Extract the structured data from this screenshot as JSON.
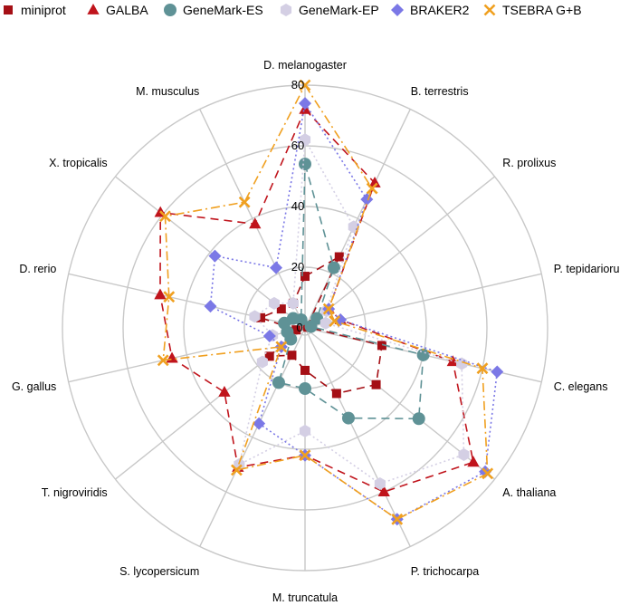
{
  "chart_data": {
    "type": "radar",
    "title": "",
    "legend_position": "top",
    "radial_ticks": [
      "20",
      "40",
      "60",
      "80"
    ],
    "radial_tick_values": [
      20,
      40,
      60,
      80
    ],
    "radial_max": 80,
    "grid": true,
    "categories": [
      "D. melanogaster",
      "B. terrestris",
      "R. prolixus",
      "P. tepidariorum",
      "C. elegans",
      "A. thaliana",
      "P. trichocarpa",
      "M. truncatula",
      "S. lycopersicum",
      "T. nigroviridis",
      "G. gallus",
      "D. rerio",
      "X. tropicalis",
      "M. musculus"
    ],
    "series": [
      {
        "name": "miniprot",
        "color": "#a50f15",
        "marker": "square",
        "dash": "dashed",
        "values": [
          17,
          26,
          1,
          1,
          26,
          30,
          24,
          14,
          10,
          15,
          3,
          15,
          10,
          9
        ]
      },
      {
        "name": "GALBA",
        "color": "#c0141c",
        "marker": "triangle",
        "dash": "dashed",
        "values": [
          72,
          53,
          10,
          12,
          50,
          71,
          60,
          42,
          51,
          34,
          45,
          49,
          61,
          38
        ]
      },
      {
        "name": "GeneMark-ES",
        "color": "#5f9296",
        "marker": "circle",
        "dash": "dashed",
        "values": [
          54,
          22,
          5,
          2,
          40,
          48,
          33,
          20,
          20,
          6,
          6,
          7,
          5,
          3
        ]
      },
      {
        "name": "GeneMark-EP",
        "color": "#d4cfe4",
        "marker": "hexagon",
        "dash": "dotted",
        "values": [
          62,
          37,
          9,
          7,
          53,
          67,
          57,
          34,
          50,
          18,
          11,
          17,
          13,
          9
        ]
      },
      {
        "name": "BRAKER2",
        "color": "#7b78e6",
        "marker": "diamond",
        "dash": "dotted",
        "values": [
          74,
          47,
          10,
          12,
          65,
          76,
          70,
          42,
          35,
          10,
          12,
          32,
          38,
          22
        ]
      },
      {
        "name": "TSEBRA G+B",
        "color": "#f0a020",
        "marker": "x",
        "dash": "dashdot",
        "values": [
          80,
          51,
          10,
          10,
          60,
          77,
          70,
          42,
          52,
          10,
          48,
          46,
          59,
          46
        ]
      }
    ]
  }
}
